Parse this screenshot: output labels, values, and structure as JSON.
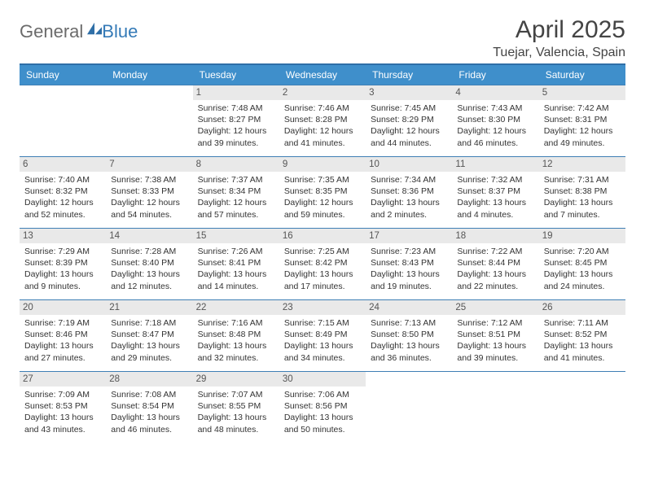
{
  "logo": {
    "part1": "General",
    "part2": "Blue"
  },
  "title": "April 2025",
  "location": "Tuejar, Valencia, Spain",
  "colors": {
    "header_blue": "#3f8fcb",
    "border_blue": "#3f7fb5",
    "daynum_bg": "#e9e9e9",
    "logo_gray": "#6b6b6b",
    "logo_blue": "#347ab7",
    "text": "#333333"
  },
  "daysOfWeek": [
    "Sunday",
    "Monday",
    "Tuesday",
    "Wednesday",
    "Thursday",
    "Friday",
    "Saturday"
  ],
  "weeks": [
    [
      null,
      null,
      {
        "n": "1",
        "sr": "7:48 AM",
        "ss": "8:27 PM",
        "dl": "12 hours and 39 minutes."
      },
      {
        "n": "2",
        "sr": "7:46 AM",
        "ss": "8:28 PM",
        "dl": "12 hours and 41 minutes."
      },
      {
        "n": "3",
        "sr": "7:45 AM",
        "ss": "8:29 PM",
        "dl": "12 hours and 44 minutes."
      },
      {
        "n": "4",
        "sr": "7:43 AM",
        "ss": "8:30 PM",
        "dl": "12 hours and 46 minutes."
      },
      {
        "n": "5",
        "sr": "7:42 AM",
        "ss": "8:31 PM",
        "dl": "12 hours and 49 minutes."
      }
    ],
    [
      {
        "n": "6",
        "sr": "7:40 AM",
        "ss": "8:32 PM",
        "dl": "12 hours and 52 minutes."
      },
      {
        "n": "7",
        "sr": "7:38 AM",
        "ss": "8:33 PM",
        "dl": "12 hours and 54 minutes."
      },
      {
        "n": "8",
        "sr": "7:37 AM",
        "ss": "8:34 PM",
        "dl": "12 hours and 57 minutes."
      },
      {
        "n": "9",
        "sr": "7:35 AM",
        "ss": "8:35 PM",
        "dl": "12 hours and 59 minutes."
      },
      {
        "n": "10",
        "sr": "7:34 AM",
        "ss": "8:36 PM",
        "dl": "13 hours and 2 minutes."
      },
      {
        "n": "11",
        "sr": "7:32 AM",
        "ss": "8:37 PM",
        "dl": "13 hours and 4 minutes."
      },
      {
        "n": "12",
        "sr": "7:31 AM",
        "ss": "8:38 PM",
        "dl": "13 hours and 7 minutes."
      }
    ],
    [
      {
        "n": "13",
        "sr": "7:29 AM",
        "ss": "8:39 PM",
        "dl": "13 hours and 9 minutes."
      },
      {
        "n": "14",
        "sr": "7:28 AM",
        "ss": "8:40 PM",
        "dl": "13 hours and 12 minutes."
      },
      {
        "n": "15",
        "sr": "7:26 AM",
        "ss": "8:41 PM",
        "dl": "13 hours and 14 minutes."
      },
      {
        "n": "16",
        "sr": "7:25 AM",
        "ss": "8:42 PM",
        "dl": "13 hours and 17 minutes."
      },
      {
        "n": "17",
        "sr": "7:23 AM",
        "ss": "8:43 PM",
        "dl": "13 hours and 19 minutes."
      },
      {
        "n": "18",
        "sr": "7:22 AM",
        "ss": "8:44 PM",
        "dl": "13 hours and 22 minutes."
      },
      {
        "n": "19",
        "sr": "7:20 AM",
        "ss": "8:45 PM",
        "dl": "13 hours and 24 minutes."
      }
    ],
    [
      {
        "n": "20",
        "sr": "7:19 AM",
        "ss": "8:46 PM",
        "dl": "13 hours and 27 minutes."
      },
      {
        "n": "21",
        "sr": "7:18 AM",
        "ss": "8:47 PM",
        "dl": "13 hours and 29 minutes."
      },
      {
        "n": "22",
        "sr": "7:16 AM",
        "ss": "8:48 PM",
        "dl": "13 hours and 32 minutes."
      },
      {
        "n": "23",
        "sr": "7:15 AM",
        "ss": "8:49 PM",
        "dl": "13 hours and 34 minutes."
      },
      {
        "n": "24",
        "sr": "7:13 AM",
        "ss": "8:50 PM",
        "dl": "13 hours and 36 minutes."
      },
      {
        "n": "25",
        "sr": "7:12 AM",
        "ss": "8:51 PM",
        "dl": "13 hours and 39 minutes."
      },
      {
        "n": "26",
        "sr": "7:11 AM",
        "ss": "8:52 PM",
        "dl": "13 hours and 41 minutes."
      }
    ],
    [
      {
        "n": "27",
        "sr": "7:09 AM",
        "ss": "8:53 PM",
        "dl": "13 hours and 43 minutes."
      },
      {
        "n": "28",
        "sr": "7:08 AM",
        "ss": "8:54 PM",
        "dl": "13 hours and 46 minutes."
      },
      {
        "n": "29",
        "sr": "7:07 AM",
        "ss": "8:55 PM",
        "dl": "13 hours and 48 minutes."
      },
      {
        "n": "30",
        "sr": "7:06 AM",
        "ss": "8:56 PM",
        "dl": "13 hours and 50 minutes."
      },
      null,
      null,
      null
    ]
  ],
  "labels": {
    "sunrise": "Sunrise:",
    "sunset": "Sunset:",
    "daylight": "Daylight:"
  }
}
